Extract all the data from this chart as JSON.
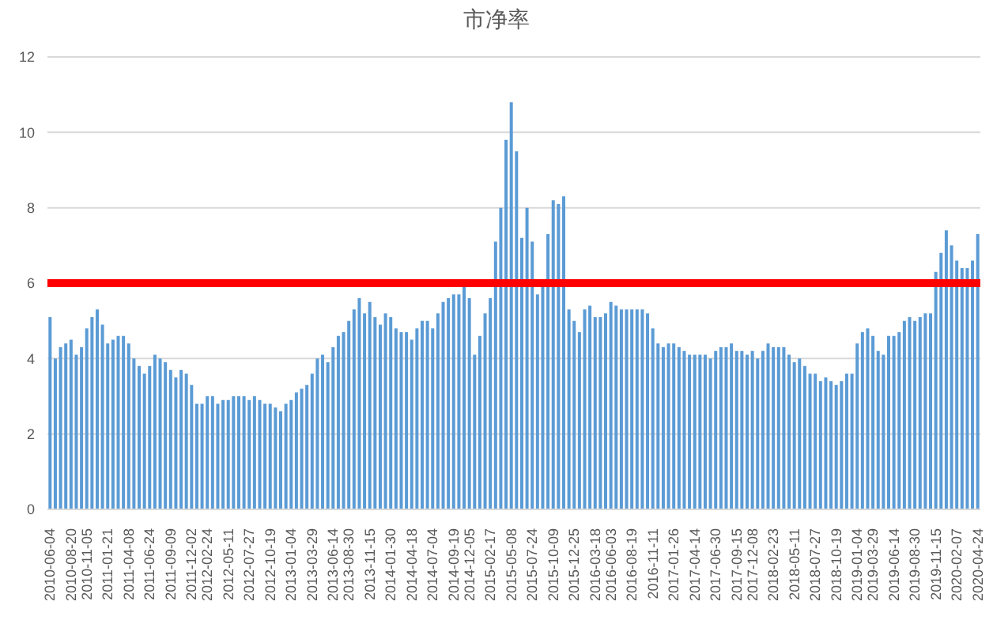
{
  "chart_data": {
    "type": "bar",
    "title": "市净率",
    "categories": [
      "2010-06-04",
      null,
      null,
      null,
      "2010-08-20",
      null,
      null,
      "2010-11-05",
      null,
      null,
      null,
      "2011-01-21",
      null,
      null,
      null,
      "2011-04-08",
      null,
      null,
      null,
      "2011-06-24",
      null,
      null,
      null,
      "2011-09-09",
      null,
      null,
      null,
      "2011-12-02",
      null,
      null,
      "2012-02-24",
      null,
      null,
      null,
      "2012-05-11",
      null,
      null,
      null,
      "2012-07-27",
      null,
      null,
      null,
      "2012-10-19",
      null,
      null,
      null,
      "2013-01-04",
      null,
      null,
      null,
      "2013-03-29",
      null,
      null,
      null,
      "2013-06-14",
      null,
      null,
      "2013-08-30",
      null,
      null,
      null,
      "2013-11-15",
      null,
      null,
      null,
      "2014-01-30",
      null,
      null,
      null,
      "2014-04-18",
      null,
      null,
      null,
      "2014-07-04",
      null,
      null,
      null,
      "2014-09-19",
      null,
      null,
      "2014-12-05",
      null,
      null,
      null,
      "2015-02-17",
      null,
      null,
      null,
      "2015-05-08",
      null,
      null,
      null,
      "2015-07-24",
      null,
      null,
      null,
      "2015-10-09",
      null,
      null,
      null,
      "2015-12-25",
      null,
      null,
      null,
      "2016-03-18",
      null,
      null,
      "2016-06-03",
      null,
      null,
      null,
      "2016-08-19",
      null,
      null,
      null,
      "2016-11-11",
      null,
      null,
      null,
      "2017-01-26",
      null,
      null,
      null,
      "2017-04-14",
      null,
      null,
      null,
      "2017-06-30",
      null,
      null,
      null,
      "2017-09-15",
      null,
      null,
      "2017-12-08",
      null,
      null,
      null,
      "2018-02-23",
      null,
      null,
      null,
      "2018-05-11",
      null,
      null,
      null,
      "2018-07-27",
      null,
      null,
      null,
      "2018-10-19",
      null,
      null,
      null,
      "2019-01-04",
      null,
      null,
      "2019-03-29",
      null,
      null,
      null,
      "2019-06-14",
      null,
      null,
      null,
      "2019-08-30",
      null,
      null,
      null,
      "2019-11-15",
      null,
      null,
      null,
      "2020-02-07",
      null,
      null,
      null,
      "2020-04-24"
    ],
    "values": [
      5.1,
      4.0,
      4.3,
      4.4,
      4.5,
      4.1,
      4.3,
      4.8,
      5.1,
      5.3,
      4.9,
      4.4,
      4.5,
      4.6,
      4.6,
      4.4,
      4.0,
      3.8,
      3.6,
      3.8,
      4.1,
      4.0,
      3.9,
      3.7,
      3.5,
      3.7,
      3.6,
      3.3,
      2.8,
      2.8,
      3.0,
      3.0,
      2.8,
      2.9,
      2.9,
      3.0,
      3.0,
      3.0,
      2.9,
      3.0,
      2.9,
      2.8,
      2.8,
      2.7,
      2.6,
      2.8,
      2.9,
      3.1,
      3.2,
      3.3,
      3.6,
      4.0,
      4.1,
      3.9,
      4.3,
      4.6,
      4.7,
      5.0,
      5.3,
      5.6,
      5.2,
      5.5,
      5.1,
      4.9,
      5.2,
      5.1,
      4.8,
      4.7,
      4.7,
      4.5,
      4.8,
      5.0,
      5.0,
      4.8,
      5.2,
      5.5,
      5.6,
      5.7,
      5.7,
      5.9,
      5.6,
      4.1,
      4.6,
      5.2,
      5.6,
      7.1,
      8.0,
      9.8,
      10.8,
      9.5,
      7.2,
      8.0,
      7.1,
      5.7,
      5.9,
      7.3,
      8.2,
      8.1,
      8.3,
      5.3,
      5.0,
      4.7,
      5.3,
      5.4,
      5.1,
      5.1,
      5.2,
      5.5,
      5.4,
      5.3,
      5.3,
      5.3,
      5.3,
      5.3,
      5.2,
      4.8,
      4.4,
      4.3,
      4.4,
      4.4,
      4.3,
      4.2,
      4.1,
      4.1,
      4.1,
      4.1,
      4.0,
      4.2,
      4.3,
      4.3,
      4.4,
      4.2,
      4.2,
      4.1,
      4.2,
      4.0,
      4.2,
      4.4,
      4.3,
      4.3,
      4.3,
      4.1,
      3.9,
      4.0,
      3.8,
      3.6,
      3.6,
      3.4,
      3.5,
      3.4,
      3.3,
      3.4,
      3.6,
      3.6,
      4.4,
      4.7,
      4.8,
      4.6,
      4.2,
      4.1,
      4.6,
      4.6,
      4.7,
      5.0,
      5.1,
      5.0,
      5.1,
      5.2,
      5.2,
      6.3,
      6.8,
      7.4,
      7.0,
      6.6,
      6.4,
      6.4,
      6.6,
      7.3
    ],
    "color": "#5b9bd5",
    "ylim": [
      0,
      12
    ],
    "yticks": [
      0,
      2,
      4,
      6,
      8,
      10,
      12
    ],
    "grid": "y",
    "ref_lines": [
      {
        "axis": "y",
        "value": 6,
        "color": "#ff0000"
      }
    ]
  }
}
